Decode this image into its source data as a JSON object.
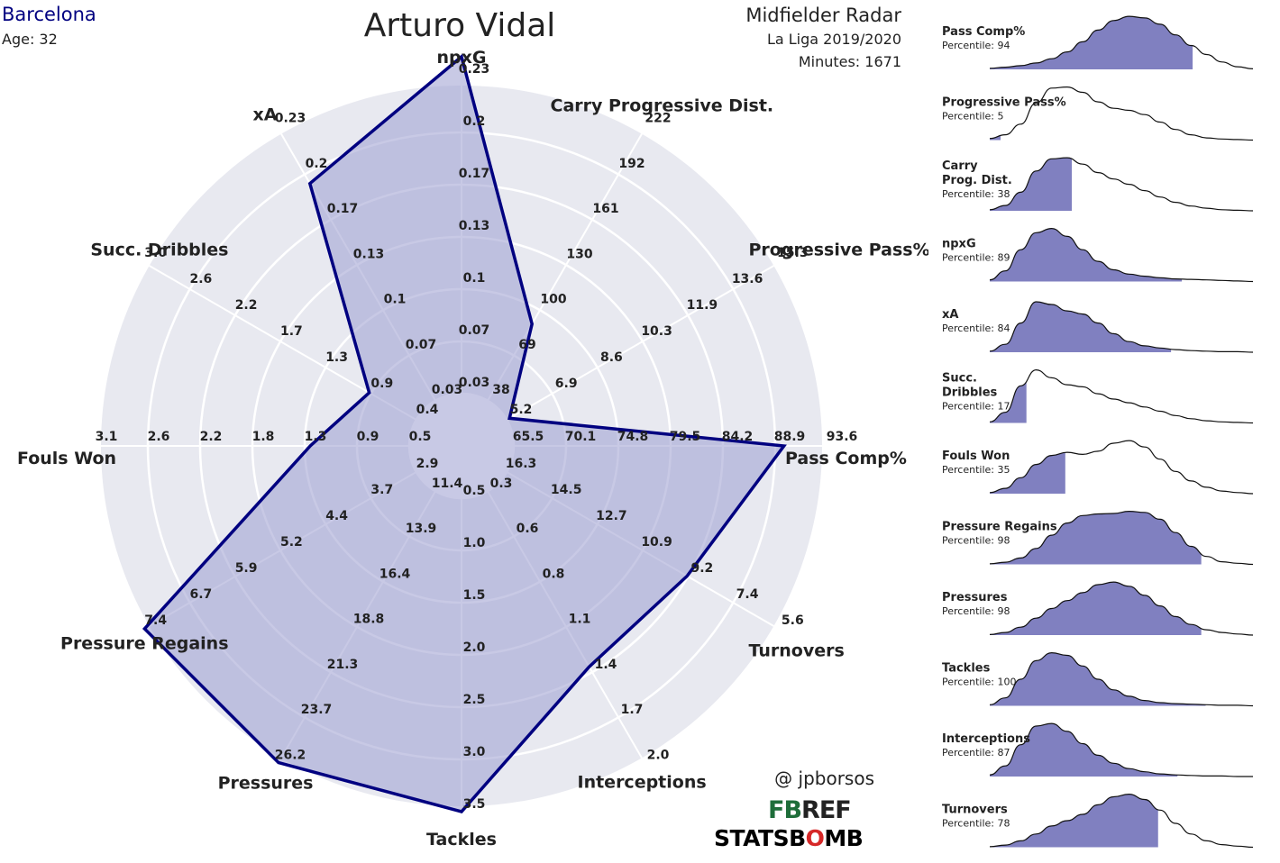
{
  "header": {
    "team": "Barcelona",
    "age": "Age: 32",
    "player": "Arturo Vidal",
    "radar_title": "Midfielder Radar",
    "league": "La Liga 2019/2020",
    "minutes": "Minutes: 1671"
  },
  "credits": {
    "handle": "@ jpborsos",
    "fbref_mark": "FB",
    "fbref_rest": "REF",
    "statsbomb_a": "STATSB",
    "statsbomb_b": "O",
    "statsbomb_c": "MB"
  },
  "colors": {
    "accent": "#000080",
    "fill": "#b9bbdd",
    "ring_bg": "#e8e9f0",
    "dist_fill": "#8080c0"
  },
  "chart_data": [
    {
      "type": "radar",
      "axes": [
        {
          "label": "npxG",
          "ticks": [
            "0.03",
            "0.07",
            "0.1",
            "0.13",
            "0.17",
            "0.2",
            "0.23"
          ],
          "value": 0.245
        },
        {
          "label": "Carry Progressive Dist.",
          "ticks": [
            "38",
            "69",
            "100",
            "130",
            "161",
            "192",
            "222"
          ],
          "value": 90
        },
        {
          "label": "Progressive Pass%",
          "ticks": [
            "5.2",
            "6.9",
            "8.6",
            "10.3",
            "11.9",
            "13.6",
            "15.3"
          ],
          "value": 5.3
        },
        {
          "label": "Pass Comp%",
          "ticks": [
            "65.5",
            "70.1",
            "74.8",
            "79.5",
            "84.2",
            "88.9",
            "93.6"
          ],
          "value": 89.7
        },
        {
          "label": "Turnovers",
          "ticks": [
            "16.3",
            "14.5",
            "12.7",
            "10.9",
            "9.2",
            "7.4",
            "5.6"
          ],
          "value": 9.2
        },
        {
          "label": "Interceptions",
          "ticks": [
            "0.3",
            "0.6",
            "0.8",
            "1.1",
            "1.4",
            "1.7",
            "2.0"
          ],
          "value": 1.4
        },
        {
          "label": "Tackles",
          "ticks": [
            "0.5",
            "1.0",
            "1.5",
            "2.0",
            "2.5",
            "3.0",
            "3.5"
          ],
          "value": 3.5
        },
        {
          "label": "Pressures",
          "ticks": [
            "11.4",
            "13.9",
            "16.4",
            "18.8",
            "21.3",
            "23.7",
            "26.2"
          ],
          "value": 26.2
        },
        {
          "label": "Pressure Regains",
          "ticks": [
            "2.9",
            "3.7",
            "4.4",
            "5.2",
            "5.9",
            "6.7",
            "7.4"
          ],
          "value": 7.4
        },
        {
          "label": "Fouls Won",
          "ticks": [
            "0.5",
            "0.9",
            "1.3",
            "1.8",
            "2.2",
            "2.6",
            "3.1"
          ],
          "value": 1.32
        },
        {
          "label": "Succ. Dribbles",
          "ticks": [
            "0.4",
            "0.9",
            "1.3",
            "1.7",
            "2.2",
            "2.6",
            "3.0"
          ],
          "value": 0.85
        },
        {
          "label": "xA",
          "ticks": [
            "0.03",
            "0.07",
            "0.1",
            "0.13",
            "0.17",
            "0.2",
            "0.23"
          ],
          "value": 0.19
        }
      ]
    },
    {
      "type": "area",
      "kind": "percentile-distributions",
      "items": [
        {
          "label": [
            "Pass Comp%"
          ],
          "percentile_text": "Percentile: 94",
          "percentile": 94,
          "curve": [
            0.02,
            0.04,
            0.07,
            0.12,
            0.2,
            0.33,
            0.52,
            0.74,
            0.92,
            1.0,
            0.97,
            0.85,
            0.65,
            0.45,
            0.28,
            0.14,
            0.05,
            0.01
          ]
        },
        {
          "label": [
            "Progressive Pass%"
          ],
          "percentile_text": "Percentile: 5",
          "percentile": 5,
          "curve": [
            0.03,
            0.1,
            0.3,
            0.7,
            0.98,
            1.0,
            0.9,
            0.72,
            0.6,
            0.56,
            0.48,
            0.34,
            0.2,
            0.1,
            0.04,
            0.02,
            0.01,
            0.0
          ]
        },
        {
          "label": [
            "Carry",
            "Prog. Dist."
          ],
          "percentile_text": "Percentile: 38",
          "percentile": 38,
          "curve": [
            0.02,
            0.1,
            0.35,
            0.75,
            0.98,
            1.0,
            0.88,
            0.72,
            0.6,
            0.5,
            0.38,
            0.26,
            0.16,
            0.09,
            0.05,
            0.02,
            0.01,
            0.0
          ]
        },
        {
          "label": [
            "npxG"
          ],
          "percentile_text": "Percentile: 89",
          "percentile": 89,
          "curve": [
            0.03,
            0.2,
            0.6,
            0.92,
            1.0,
            0.85,
            0.6,
            0.38,
            0.22,
            0.14,
            0.1,
            0.07,
            0.05,
            0.04,
            0.03,
            0.02,
            0.01,
            0.0
          ]
        },
        {
          "label": [
            "xA"
          ],
          "percentile_text": "Percentile: 84",
          "percentile": 84,
          "curve": [
            0.02,
            0.15,
            0.55,
            0.95,
            0.9,
            0.78,
            0.72,
            0.55,
            0.35,
            0.2,
            0.12,
            0.08,
            0.05,
            0.03,
            0.02,
            0.01,
            0.01,
            0.0
          ]
        },
        {
          "label": [
            "Succ.",
            "Dribbles"
          ],
          "percentile_text": "Percentile: 17",
          "percentile": 17,
          "curve": [
            0.02,
            0.2,
            0.7,
            1.0,
            0.85,
            0.72,
            0.68,
            0.55,
            0.45,
            0.38,
            0.3,
            0.22,
            0.14,
            0.08,
            0.04,
            0.02,
            0.01,
            0.0
          ]
        },
        {
          "label": [
            "Fouls Won"
          ],
          "percentile_text": "Percentile: 35",
          "percentile": 35,
          "curve": [
            0.02,
            0.1,
            0.3,
            0.55,
            0.72,
            0.78,
            0.74,
            0.8,
            0.95,
            1.0,
            0.88,
            0.65,
            0.42,
            0.24,
            0.12,
            0.05,
            0.02,
            0.0
          ]
        },
        {
          "label": [
            "Pressure Regains"
          ],
          "percentile_text": "Percentile: 98",
          "percentile": 98,
          "curve": [
            0.01,
            0.04,
            0.12,
            0.3,
            0.55,
            0.78,
            0.92,
            0.95,
            0.96,
            1.0,
            0.98,
            0.85,
            0.6,
            0.34,
            0.15,
            0.05,
            0.02,
            0.0
          ]
        },
        {
          "label": [
            "Pressures"
          ],
          "percentile_text": "Percentile: 98",
          "percentile": 98,
          "curve": [
            0.01,
            0.05,
            0.15,
            0.32,
            0.5,
            0.65,
            0.8,
            0.95,
            1.0,
            0.92,
            0.75,
            0.55,
            0.35,
            0.2,
            0.1,
            0.05,
            0.02,
            0.0
          ]
        },
        {
          "label": [
            "Tackles"
          ],
          "percentile_text": "Percentile: 100",
          "percentile": 100,
          "curve": [
            0.02,
            0.15,
            0.5,
            0.85,
            1.0,
            0.95,
            0.75,
            0.5,
            0.3,
            0.18,
            0.1,
            0.06,
            0.04,
            0.03,
            0.02,
            0.01,
            0.01,
            0.0
          ]
        },
        {
          "label": [
            "Interceptions"
          ],
          "percentile_text": "Percentile: 87",
          "percentile": 87,
          "curve": [
            0.03,
            0.2,
            0.6,
            0.95,
            1.0,
            0.85,
            0.62,
            0.4,
            0.25,
            0.15,
            0.09,
            0.05,
            0.03,
            0.02,
            0.01,
            0.01,
            0.0,
            0.0
          ]
        },
        {
          "label": [
            "Turnovers"
          ],
          "percentile_text": "Percentile: 78",
          "percentile": 78,
          "curve": [
            0.01,
            0.04,
            0.12,
            0.25,
            0.4,
            0.5,
            0.62,
            0.8,
            0.95,
            1.0,
            0.9,
            0.7,
            0.45,
            0.25,
            0.12,
            0.05,
            0.02,
            0.0
          ]
        }
      ]
    }
  ]
}
